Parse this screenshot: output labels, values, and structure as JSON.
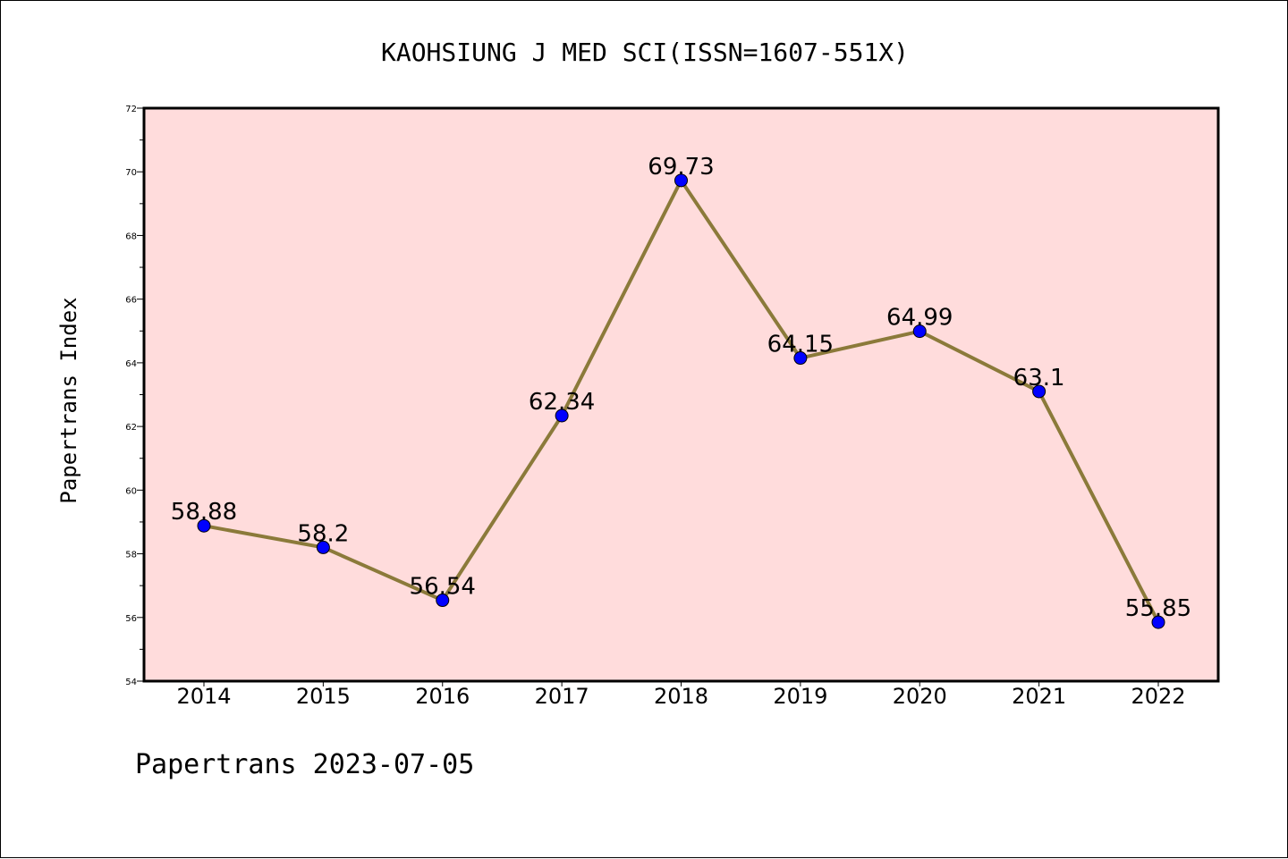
{
  "chart_data": {
    "type": "line",
    "title": "KAOHSIUNG J MED SCI(ISSN=1607-551X)",
    "ylabel": "Papertrans Index",
    "xlabel": "",
    "footer": "Papertrans 2023-07-05",
    "categories": [
      "2014",
      "2015",
      "2016",
      "2017",
      "2018",
      "2019",
      "2020",
      "2021",
      "2022"
    ],
    "series": [
      {
        "values": [
          58.88,
          58.2,
          56.54,
          62.34,
          69.73,
          64.15,
          64.99,
          63.1,
          55.85
        ]
      }
    ],
    "data_labels": [
      "58.88",
      "58.2",
      "56.54",
      "62.34",
      "69.73",
      "64.15",
      "64.99",
      "63.1",
      "55.85"
    ],
    "ylim": [
      54,
      72
    ],
    "yticks": [
      54,
      56,
      58,
      60,
      62,
      64,
      66,
      68,
      70,
      72
    ],
    "ytick_labels": [
      "54",
      "56",
      "58",
      "60",
      "62",
      "64",
      "66",
      "68",
      "70",
      "72"
    ],
    "grid": false,
    "colors": {
      "plot_background": "#ffdcdc",
      "line": "#8b7a3a",
      "marker": "#0000ff"
    }
  }
}
